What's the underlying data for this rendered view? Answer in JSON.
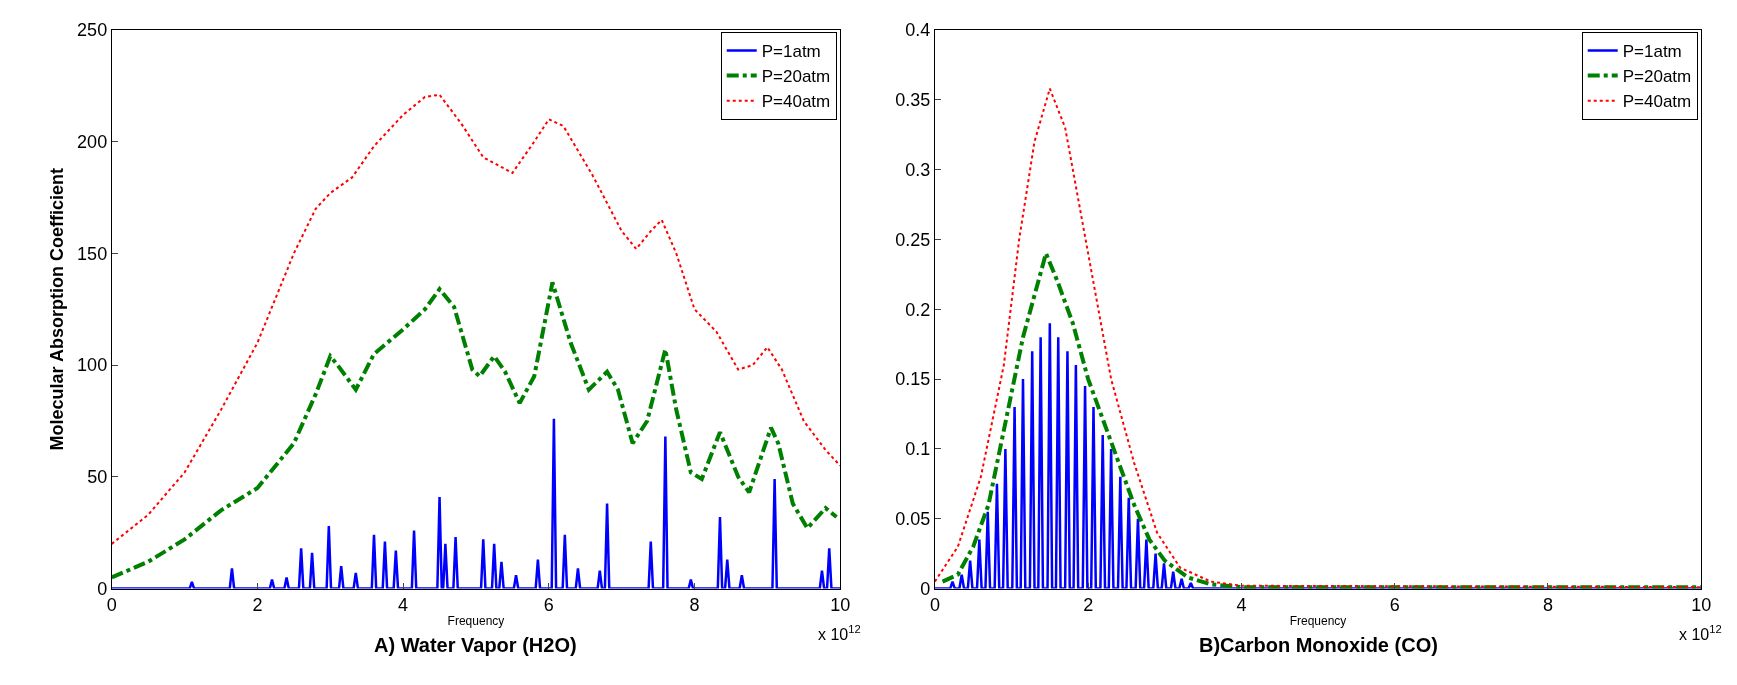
{
  "chart_data": [
    {
      "type": "line",
      "title": "A) Water Vapor (H2O)",
      "xlabel": "Frequency",
      "ylabel": "Molecular Absorption Coefficient",
      "annotations": [
        "x 10$^{12}$"
      ],
      "xlim": [
        0,
        10
      ],
      "xticks": [
        0,
        2,
        4,
        6,
        8,
        10
      ],
      "ylim": [
        0,
        250
      ],
      "yticks": [
        0,
        50,
        100,
        150,
        200,
        250
      ],
      "legend": "top right",
      "series": [
        {
          "name": "P=1atm",
          "color": "#0000ff",
          "line_style": "solid",
          "x": [
            0,
            1.07,
            1.1,
            1.13,
            1.62,
            1.65,
            1.68,
            2.17,
            2.2,
            2.23,
            2.37,
            2.4,
            2.43,
            2.57,
            2.6,
            2.63,
            2.72,
            2.75,
            2.78,
            2.95,
            2.98,
            3.01,
            3.12,
            3.15,
            3.18,
            3.32,
            3.35,
            3.38,
            3.57,
            3.6,
            3.63,
            3.72,
            3.75,
            3.78,
            3.87,
            3.9,
            3.93,
            4.12,
            4.15,
            4.18,
            4.47,
            4.5,
            4.53,
            4.55,
            4.58,
            4.61,
            4.69,
            4.72,
            4.75,
            5.07,
            5.1,
            5.13,
            5.22,
            5.25,
            5.28,
            5.32,
            5.35,
            5.38,
            5.52,
            5.55,
            5.58,
            5.82,
            5.85,
            5.88,
            6.04,
            6.07,
            6.1,
            6.19,
            6.22,
            6.25,
            6.37,
            6.4,
            6.43,
            6.67,
            6.7,
            6.73,
            6.77,
            6.8,
            6.83,
            7.37,
            7.4,
            7.43,
            7.57,
            7.6,
            7.63,
            7.92,
            7.95,
            7.98,
            8.32,
            8.35,
            8.38,
            8.42,
            8.45,
            8.48,
            8.62,
            8.65,
            8.68,
            9.07,
            9.1,
            9.13,
            9.72,
            9.75,
            9.78,
            9.82,
            9.85,
            9.88,
            10
          ],
          "values": [
            0,
            0,
            3,
            0,
            0,
            9,
            0,
            0,
            4,
            0,
            0,
            5,
            0,
            0,
            18,
            0,
            0,
            16,
            0,
            0,
            28,
            0,
            0,
            10,
            0,
            0,
            7,
            0,
            0,
            24,
            0,
            0,
            21,
            0,
            0,
            17,
            0,
            0,
            26,
            0,
            0,
            41,
            0,
            0,
            20,
            0,
            0,
            23,
            0,
            0,
            22,
            0,
            0,
            20,
            0,
            0,
            12,
            0,
            0,
            6,
            0,
            0,
            13,
            0,
            0,
            76,
            0,
            0,
            24,
            0,
            0,
            9,
            0,
            0,
            8,
            0,
            0,
            38,
            0,
            0,
            21,
            0,
            0,
            68,
            0,
            0,
            4,
            0,
            0,
            32,
            0,
            0,
            13,
            0,
            0,
            6,
            0,
            0,
            49,
            0,
            0,
            8,
            0,
            0,
            18,
            0,
            0
          ]
        },
        {
          "name": "P=20atm",
          "color": "#008000",
          "line_style": "dashed",
          "x": [
            0,
            0.5,
            1,
            1.5,
            2,
            2.5,
            2.8,
            3.0,
            3.1,
            3.35,
            3.6,
            4.0,
            4.3,
            4.5,
            4.7,
            4.95,
            5.05,
            5.25,
            5.4,
            5.6,
            5.8,
            6.05,
            6.3,
            6.55,
            6.8,
            6.95,
            7.15,
            7.35,
            7.6,
            7.75,
            7.95,
            8.1,
            8.35,
            8.6,
            8.75,
            9.05,
            9.15,
            9.35,
            9.55,
            9.8,
            9.95
          ],
          "values": [
            5,
            12,
            22,
            35,
            45,
            65,
            87,
            104,
            100,
            89,
            105,
            116,
            125,
            134,
            126,
            98,
            95,
            104,
            97,
            83,
            95,
            137,
            110,
            89,
            97,
            89,
            65,
            75,
            107,
            80,
            52,
            49,
            70,
            50,
            43,
            72,
            65,
            38,
            27,
            36,
            32
          ]
        },
        {
          "name": "P=40atm",
          "color": "#ff0000",
          "line_style": "dotted",
          "x": [
            0,
            0.5,
            1,
            1.5,
            2,
            2.5,
            2.8,
            3.0,
            3.3,
            3.6,
            4.0,
            4.3,
            4.5,
            4.8,
            5.1,
            5.5,
            5.8,
            6.0,
            6.2,
            6.6,
            7.0,
            7.2,
            7.4,
            7.55,
            7.75,
            8.0,
            8.3,
            8.6,
            8.8,
            9.0,
            9.2,
            9.5,
            9.8,
            10
          ],
          "values": [
            20,
            33,
            52,
            80,
            110,
            150,
            170,
            177,
            184,
            198,
            212,
            220,
            221,
            208,
            193,
            186,
            200,
            210,
            207,
            185,
            160,
            152,
            160,
            165,
            150,
            125,
            115,
            98,
            100,
            108,
            98,
            75,
            62,
            55
          ]
        }
      ]
    },
    {
      "type": "line",
      "title": "B)Carbon Monoxide (CO)",
      "xlabel": "Frequency",
      "annotations": [
        "x 10$^{12}$"
      ],
      "xlim": [
        0,
        10
      ],
      "xticks": [
        0,
        2,
        4,
        6,
        8,
        10
      ],
      "ylim": [
        0,
        0.4
      ],
      "yticks": [
        0,
        0.05,
        0.1,
        0.15,
        0.2,
        0.25,
        0.3,
        0.35,
        0.4
      ],
      "legend": "top right",
      "series": [
        {
          "name": "P=1atm",
          "color": "#0000ff",
          "line_style": "solid",
          "x": [
            0,
            0.2,
            0.23,
            0.26,
            0.32,
            0.35,
            0.38,
            0.43,
            0.46,
            0.49,
            0.55,
            0.58,
            0.61,
            0.66,
            0.69,
            0.72,
            0.78,
            0.81,
            0.84,
            0.89,
            0.92,
            0.95,
            1.01,
            1.04,
            1.07,
            1.12,
            1.15,
            1.18,
            1.24,
            1.27,
            1.3,
            1.35,
            1.38,
            1.41,
            1.47,
            1.5,
            1.53,
            1.58,
            1.61,
            1.64,
            1.7,
            1.73,
            1.76,
            1.81,
            1.84,
            1.87,
            1.93,
            1.96,
            1.99,
            2.04,
            2.07,
            2.1,
            2.16,
            2.19,
            2.22,
            2.27,
            2.3,
            2.33,
            2.39,
            2.42,
            2.45,
            2.5,
            2.53,
            2.56,
            2.62,
            2.65,
            2.68,
            2.73,
            2.76,
            2.79,
            2.85,
            2.88,
            2.91,
            2.96,
            2.99,
            3.02,
            3.08,
            3.11,
            3.14,
            3.19,
            3.22,
            3.25,
            3.31,
            3.34,
            3.37,
            10
          ],
          "values": [
            0,
            0,
            0.005,
            0,
            0,
            0.01,
            0,
            0,
            0.02,
            0,
            0,
            0.035,
            0,
            0,
            0.055,
            0,
            0,
            0.075,
            0,
            0,
            0.1,
            0,
            0,
            0.13,
            0,
            0,
            0.15,
            0,
            0,
            0.17,
            0,
            0,
            0.18,
            0,
            0,
            0.19,
            0,
            0,
            0.18,
            0,
            0,
            0.17,
            0,
            0,
            0.16,
            0,
            0,
            0.145,
            0,
            0,
            0.13,
            0,
            0,
            0.11,
            0,
            0,
            0.1,
            0,
            0,
            0.08,
            0,
            0,
            0.065,
            0,
            0,
            0.05,
            0,
            0,
            0.035,
            0,
            0,
            0.025,
            0,
            0,
            0.018,
            0,
            0,
            0.012,
            0,
            0,
            0.007,
            0,
            0,
            0.004,
            0,
            0
          ]
        },
        {
          "name": "P=20atm",
          "color": "#008000",
          "line_style": "dashed",
          "x": [
            0.1,
            0.3,
            0.5,
            0.7,
            0.85,
            1.0,
            1.15,
            1.3,
            1.45,
            1.6,
            1.8,
            2.0,
            2.2,
            2.4,
            2.6,
            2.8,
            3.0,
            3.3,
            3.6,
            4,
            10
          ],
          "values": [
            0.005,
            0.01,
            0.03,
            0.06,
            0.1,
            0.14,
            0.18,
            0.21,
            0.24,
            0.22,
            0.19,
            0.15,
            0.12,
            0.09,
            0.06,
            0.035,
            0.02,
            0.008,
            0.003,
            0.001,
            0.001
          ]
        },
        {
          "name": "P=40atm",
          "color": "#ff0000",
          "line_style": "dotted",
          "x": [
            0,
            0.3,
            0.6,
            0.9,
            1.1,
            1.3,
            1.5,
            1.7,
            1.9,
            2.1,
            2.3,
            2.6,
            2.9,
            3.2,
            3.6,
            4,
            10
          ],
          "values": [
            0.005,
            0.03,
            0.08,
            0.16,
            0.25,
            0.32,
            0.358,
            0.33,
            0.27,
            0.21,
            0.15,
            0.09,
            0.04,
            0.015,
            0.005,
            0.002,
            0.001
          ]
        }
      ]
    }
  ]
}
